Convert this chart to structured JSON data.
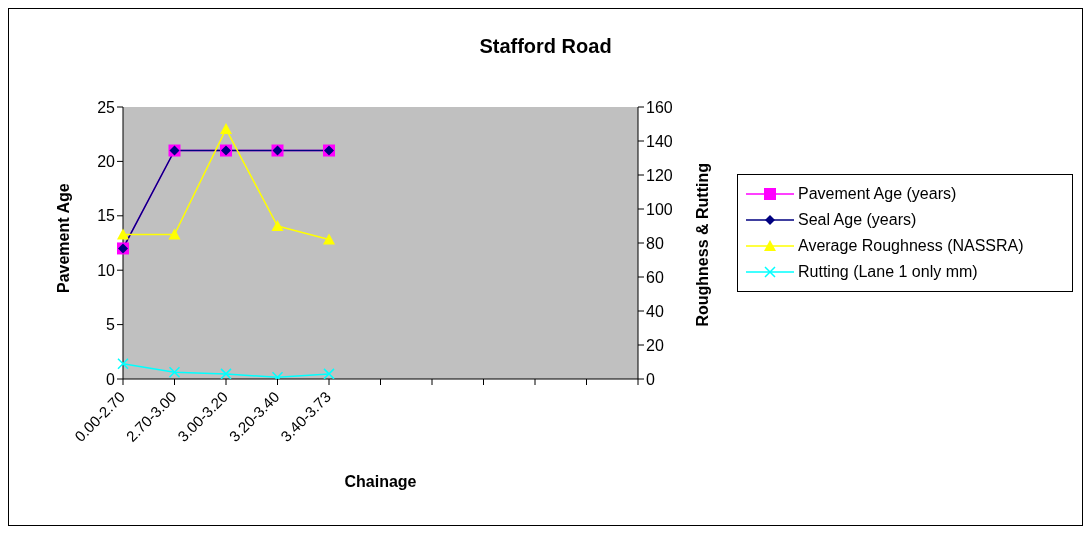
{
  "chart_data": {
    "type": "line",
    "title": "Stafford Road",
    "xlabel": "Chainage",
    "ylabel": "Pavement Age",
    "y2label": "Roughness & Rutting",
    "categories": [
      "0.00-2.70",
      "2.70-3.00",
      "3.00-3.20",
      "3.20-3.40",
      "3.40-3.73",
      null,
      null,
      null,
      null,
      null,
      null
    ],
    "series": [
      {
        "name": "Pavement Age (years)",
        "color": "#ff00ff",
        "marker": "square",
        "values": [
          12,
          21,
          21,
          21,
          21,
          null,
          null,
          null,
          null,
          null,
          null
        ]
      },
      {
        "name": "Seal Age (years)",
        "color": "#000080",
        "marker": "diamond",
        "values": [
          12,
          21,
          21,
          21,
          21,
          null,
          null,
          null,
          null,
          null,
          null
        ]
      },
      {
        "name": "Average Roughness (NASSRA)",
        "color": "#ffff00",
        "marker": "triangle",
        "axis": "y2",
        "values": [
          85,
          85,
          147,
          90,
          82,
          null,
          null,
          null,
          null,
          null,
          null
        ]
      },
      {
        "name": "Rutting (Lane 1 only mm)",
        "color": "#00ffff",
        "marker": "cross",
        "axis": "y2",
        "values": [
          9,
          4,
          3,
          1,
          3,
          null,
          null,
          null,
          null,
          null,
          null
        ]
      }
    ],
    "ylim": [
      0,
      25
    ],
    "yticks": [
      0,
      5,
      10,
      15,
      20,
      25
    ],
    "y2lim": [
      0,
      160
    ],
    "y2ticks": [
      0,
      20,
      40,
      60,
      80,
      100,
      120,
      140,
      160
    ],
    "legend": "right",
    "grid": false
  }
}
